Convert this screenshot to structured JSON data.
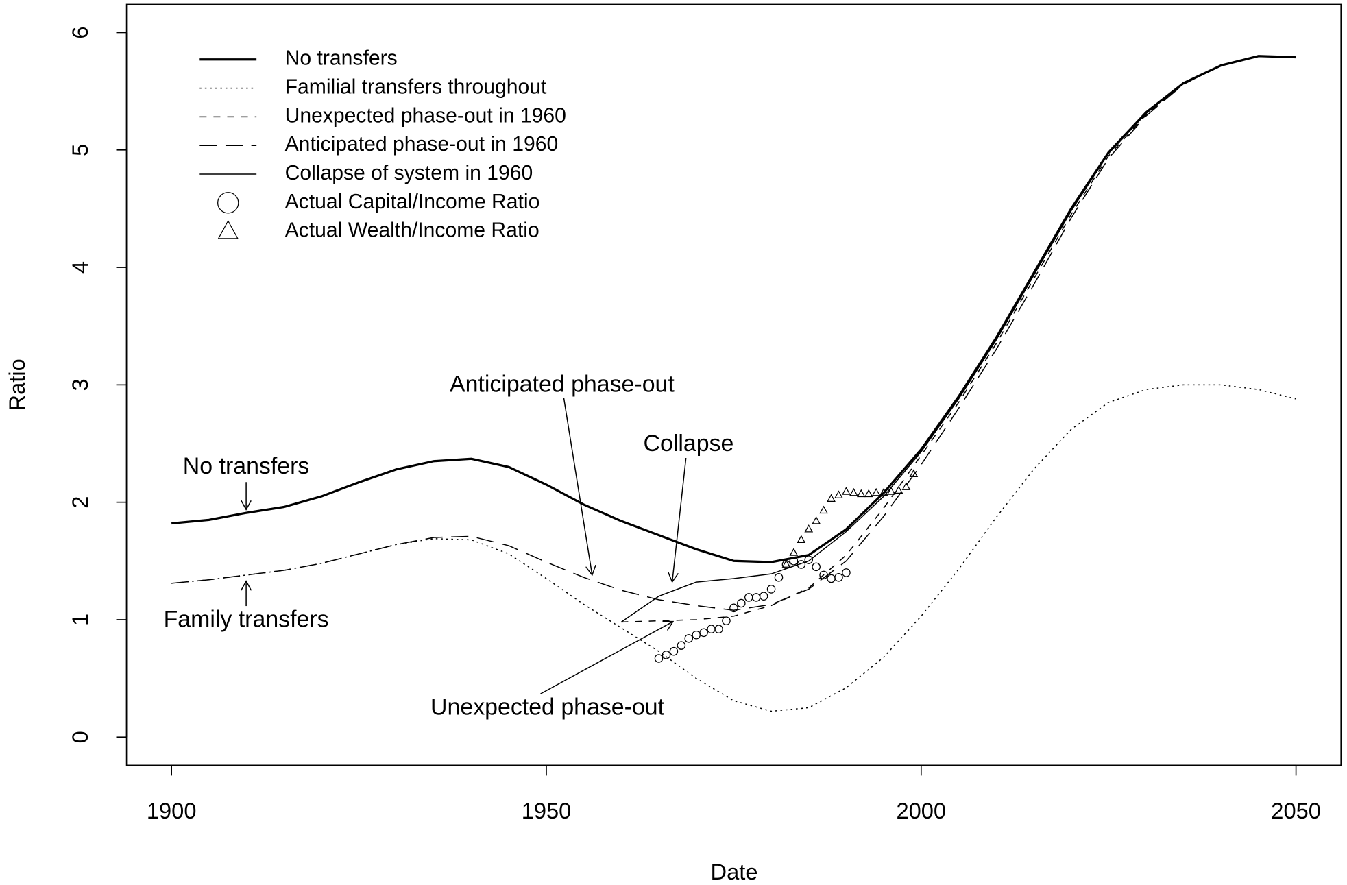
{
  "chart_data": {
    "type": "line",
    "xlabel": "Date",
    "ylabel": "Ratio",
    "xlim": [
      1894,
      2056
    ],
    "ylim": [
      -0.24,
      6.24
    ],
    "xticks": [
      1900,
      1950,
      2000,
      2050
    ],
    "yticks": [
      0,
      1,
      2,
      3,
      4,
      5,
      6
    ],
    "legend": "topleft",
    "series": [
      {
        "name": "No transfers",
        "color": "#000000",
        "linestyle": "solid",
        "linewidth": 2.6,
        "x": [
          1900,
          1905,
          1910,
          1915,
          1920,
          1925,
          1930,
          1935,
          1940,
          1945,
          1950,
          1955,
          1960,
          1965,
          1970,
          1975,
          1980,
          1985,
          1990,
          1995,
          2000,
          2005,
          2010,
          2015,
          2020,
          2025,
          2030,
          2035,
          2040,
          2045,
          2050
        ],
        "values": [
          1.82,
          1.85,
          1.91,
          1.96,
          2.05,
          2.17,
          2.28,
          2.35,
          2.37,
          2.3,
          2.15,
          1.98,
          1.84,
          1.72,
          1.6,
          1.5,
          1.49,
          1.55,
          1.77,
          2.08,
          2.45,
          2.9,
          3.4,
          3.95,
          4.5,
          4.98,
          5.32,
          5.57,
          5.72,
          5.8,
          5.79
        ]
      },
      {
        "name": "Familial transfers throughout",
        "color": "#000000",
        "linestyle": "dotted",
        "linewidth": 1.2,
        "x": [
          1900,
          1905,
          1910,
          1915,
          1920,
          1925,
          1930,
          1935,
          1940,
          1945,
          1950,
          1955,
          1960,
          1965,
          1970,
          1975,
          1980,
          1985,
          1990,
          1995,
          2000,
          2005,
          2010,
          2015,
          2020,
          2025,
          2030,
          2035,
          2040,
          2045,
          2050
        ],
        "values": [
          1.31,
          1.34,
          1.38,
          1.42,
          1.48,
          1.56,
          1.64,
          1.69,
          1.68,
          1.56,
          1.35,
          1.13,
          0.93,
          0.73,
          0.5,
          0.31,
          0.22,
          0.25,
          0.42,
          0.68,
          1.03,
          1.43,
          1.87,
          2.28,
          2.62,
          2.85,
          2.96,
          3.0,
          3.0,
          2.96,
          2.88
        ]
      },
      {
        "name": "Unexpected phase-out in 1960",
        "color": "#000000",
        "linestyle": "dashed",
        "linewidth": 1.2,
        "x": [
          1960,
          1965,
          1970,
          1975,
          1980,
          1985,
          1990,
          1995,
          2000,
          2005,
          2010,
          2015,
          2020,
          2025,
          2030,
          2035,
          2040,
          2045,
          2050
        ],
        "values": [
          0.98,
          0.99,
          1.0,
          1.03,
          1.12,
          1.27,
          1.55,
          1.95,
          2.4,
          2.85,
          3.35,
          3.9,
          4.45,
          4.95,
          5.3,
          5.56,
          5.72,
          5.8,
          5.79
        ]
      },
      {
        "name": "Anticipated phase-out in 1960",
        "color": "#000000",
        "linestyle": "longdash",
        "linewidth": 1.2,
        "x": [
          1900,
          1905,
          1910,
          1915,
          1920,
          1925,
          1930,
          1935,
          1940,
          1945,
          1950,
          1955,
          1960,
          1965,
          1970,
          1975,
          1980,
          1985,
          1990,
          1995,
          2000,
          2005,
          2010,
          2015,
          2020,
          2025,
          2030,
          2035,
          2040,
          2045,
          2050
        ],
        "values": [
          1.31,
          1.34,
          1.38,
          1.42,
          1.48,
          1.56,
          1.64,
          1.7,
          1.71,
          1.63,
          1.49,
          1.36,
          1.25,
          1.17,
          1.12,
          1.08,
          1.13,
          1.26,
          1.5,
          1.88,
          2.32,
          2.8,
          3.3,
          3.85,
          4.42,
          4.93,
          5.29,
          5.56,
          5.72,
          5.8,
          5.79
        ]
      },
      {
        "name": "Collapse of system in 1960",
        "color": "#000000",
        "linestyle": "solid",
        "linewidth": 1.2,
        "x": [
          1960,
          1965,
          1970,
          1975,
          1980,
          1985,
          1990,
          1995,
          2000,
          2005,
          2010,
          2015,
          2020,
          2025,
          2030,
          2035,
          2040,
          2045,
          2050
        ],
        "values": [
          0.98,
          1.2,
          1.32,
          1.35,
          1.39,
          1.5,
          1.75,
          2.05,
          2.43,
          2.88,
          3.38,
          3.93,
          4.48,
          4.97,
          5.31,
          5.57,
          5.72,
          5.8,
          5.79
        ]
      },
      {
        "name": "Actual Capital/Income Ratio",
        "color": "#000000",
        "marker": "circle",
        "x": [
          1965,
          1966,
          1967,
          1968,
          1969,
          1970,
          1971,
          1972,
          1973,
          1974,
          1975,
          1976,
          1977,
          1978,
          1979,
          1980,
          1981,
          1982,
          1983,
          1984,
          1985,
          1986,
          1987,
          1988,
          1989,
          1990
        ],
        "values": [
          0.67,
          0.7,
          0.73,
          0.78,
          0.84,
          0.87,
          0.89,
          0.92,
          0.92,
          0.99,
          1.1,
          1.14,
          1.19,
          1.19,
          1.2,
          1.26,
          1.36,
          1.47,
          1.5,
          1.47,
          1.51,
          1.45,
          1.38,
          1.35,
          1.36,
          1.4
        ]
      },
      {
        "name": "Actual Wealth/Income Ratio",
        "color": "#000000",
        "marker": "triangle",
        "x": [
          1982,
          1983,
          1984,
          1985,
          1986,
          1987,
          1988,
          1989,
          1990,
          1991,
          1992,
          1993,
          1994,
          1995,
          1996,
          1997,
          1998,
          1999
        ],
        "values": [
          1.47,
          1.57,
          1.68,
          1.77,
          1.84,
          1.93,
          2.03,
          2.06,
          2.09,
          2.08,
          2.07,
          2.07,
          2.08,
          2.08,
          2.09,
          2.1,
          2.13,
          2.24
        ]
      }
    ],
    "annotations": [
      "No transfers",
      "Family transfers",
      "Anticipated phase-out",
      "Collapse",
      "Unexpected phase-out"
    ]
  }
}
